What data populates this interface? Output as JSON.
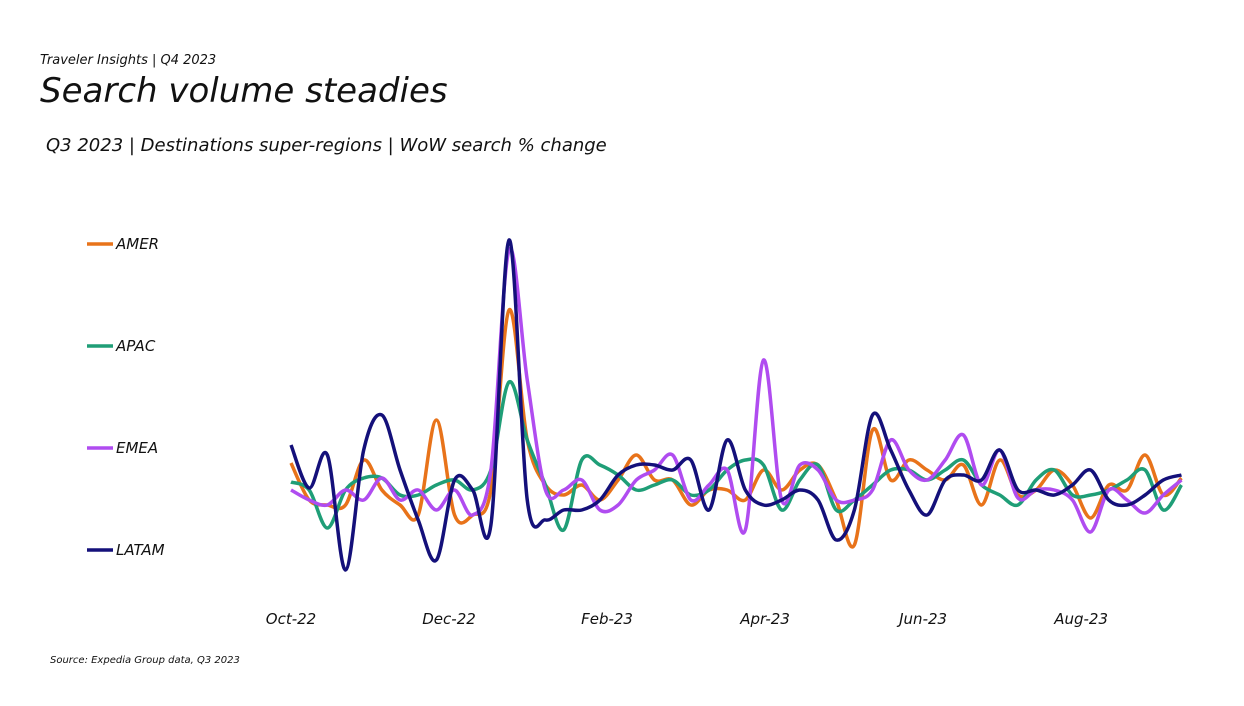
{
  "chart_data": {
    "type": "line",
    "eyebrow": "Traveler Insights | Q4 2023",
    "title": "Search volume steadies",
    "subtitle": "Q3 2023 | Destinations super-regions | WoW search % change",
    "source": "Source: Expedia Group data, Q3 2023",
    "x": [
      0,
      0.23,
      0.46,
      0.69,
      0.92,
      1.15,
      1.38,
      1.61,
      1.84,
      2.07,
      2.3,
      2.53,
      2.76,
      2.99,
      3.22,
      3.45,
      3.68,
      3.91,
      4.14,
      4.37,
      4.6,
      4.83,
      5.06,
      5.29,
      5.52,
      5.75,
      5.98,
      6.21,
      6.44,
      6.67,
      6.9,
      7.13,
      7.36,
      7.59,
      7.82,
      8.05,
      8.28,
      8.51,
      8.74,
      8.97,
      9.2,
      9.43,
      9.66,
      9.89,
      10.12,
      10.35,
      10.58,
      10.81,
      11.04,
      11.27
    ],
    "xlim": [
      0,
      11.34
    ],
    "xticks": [
      {
        "value": 0,
        "label": "Oct-22"
      },
      {
        "value": 2,
        "label": "Dec-22"
      },
      {
        "value": 4,
        "label": "Feb-23"
      },
      {
        "value": 6,
        "label": "Apr-23"
      },
      {
        "value": 8,
        "label": "Jun-23"
      },
      {
        "value": 10,
        "label": "Aug-23"
      }
    ],
    "ylim": [
      -12,
      30
    ],
    "series": [
      {
        "name": "AMER",
        "color": "#e8731a",
        "values": [
          2.7,
          -1,
          -1.5,
          -1.5,
          3,
          0,
          -1.5,
          -2.5,
          7,
          -2.5,
          -2.5,
          0,
          18,
          5,
          0.5,
          -0.5,
          0.5,
          -1,
          1,
          3.5,
          1,
          1,
          -1.5,
          0,
          0,
          -1,
          2,
          0,
          2,
          2.5,
          -1,
          -5.5,
          6,
          1,
          3,
          2,
          1,
          2.5,
          -1.5,
          3,
          -0.5,
          0,
          2,
          0.5,
          -2.8,
          0.5,
          0,
          3.5,
          -0.5,
          1.2
        ]
      },
      {
        "name": "APAC",
        "color": "#1f9e77",
        "values": [
          0.8,
          0,
          -3.8,
          0,
          1.2,
          1.2,
          -0.5,
          -0.5,
          0.5,
          1,
          0,
          2,
          10.8,
          5,
          0.5,
          -4,
          3,
          2.5,
          1.5,
          0,
          0.5,
          1,
          -0.5,
          0,
          2,
          3,
          2.5,
          -2,
          1,
          2.5,
          -2,
          -1,
          0.5,
          2,
          2,
          1,
          2,
          3,
          0.5,
          -0.5,
          -1.5,
          1,
          2,
          -0.5,
          -0.5,
          0,
          1,
          2,
          -2,
          0.5
        ]
      },
      {
        "name": "EMEA",
        "color": "#b04cf0",
        "values": [
          0,
          -1,
          -1.5,
          0,
          -1,
          1.2,
          -1,
          0,
          -2,
          0,
          -2.5,
          2,
          24,
          11,
          0,
          0,
          1,
          -2,
          -1.5,
          1,
          2,
          3.5,
          -1,
          0.5,
          2,
          -4,
          13,
          -1,
          2.5,
          2,
          -1,
          -1,
          0,
          5,
          2,
          1,
          3,
          5.5,
          0.5,
          4,
          -0.8,
          0,
          0,
          -1,
          -4.2,
          0,
          -1,
          -2.3,
          -0.5,
          1
        ]
      },
      {
        "name": "LATAM",
        "color": "#14107a",
        "values": [
          4.5,
          0.2,
          3.5,
          -8,
          4,
          7.5,
          2,
          -3,
          -7,
          1,
          0,
          -3.5,
          25,
          -1,
          -3,
          -2,
          -2,
          -1,
          1.5,
          2.5,
          2.5,
          2,
          3,
          -2,
          5,
          0,
          -1.5,
          -1,
          0,
          -1,
          -5,
          -2,
          7.5,
          4,
          0,
          -2.5,
          1,
          1.5,
          1,
          4,
          0,
          0,
          -0.5,
          0.5,
          2,
          -1,
          -1.5,
          -0.5,
          1,
          1.5
        ]
      }
    ]
  }
}
